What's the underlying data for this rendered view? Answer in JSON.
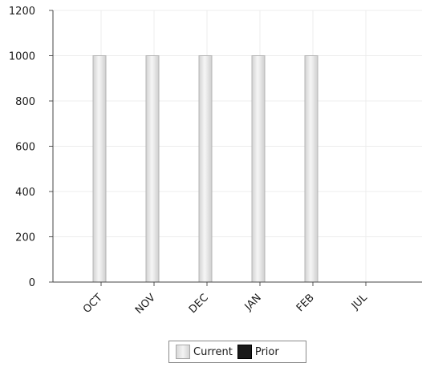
{
  "chart_data": {
    "type": "bar",
    "categories": [
      "OCT",
      "NOV",
      "DEC",
      "JAN",
      "FEB",
      "JUL"
    ],
    "series": [
      {
        "name": "Current",
        "values": [
          1000,
          1000,
          1000,
          1000,
          1000,
          0
        ],
        "color": "#e6e6e6"
      },
      {
        "name": "Prior",
        "values": [
          0,
          0,
          0,
          0,
          0,
          0
        ],
        "color": "#1a1a1a"
      }
    ],
    "title": "",
    "xlabel": "",
    "ylabel": "",
    "ylim": [
      0,
      1200
    ],
    "yticks": [
      0,
      200,
      400,
      600,
      800,
      1000,
      1200
    ],
    "grid": true,
    "legend_position": "bottom-center"
  }
}
